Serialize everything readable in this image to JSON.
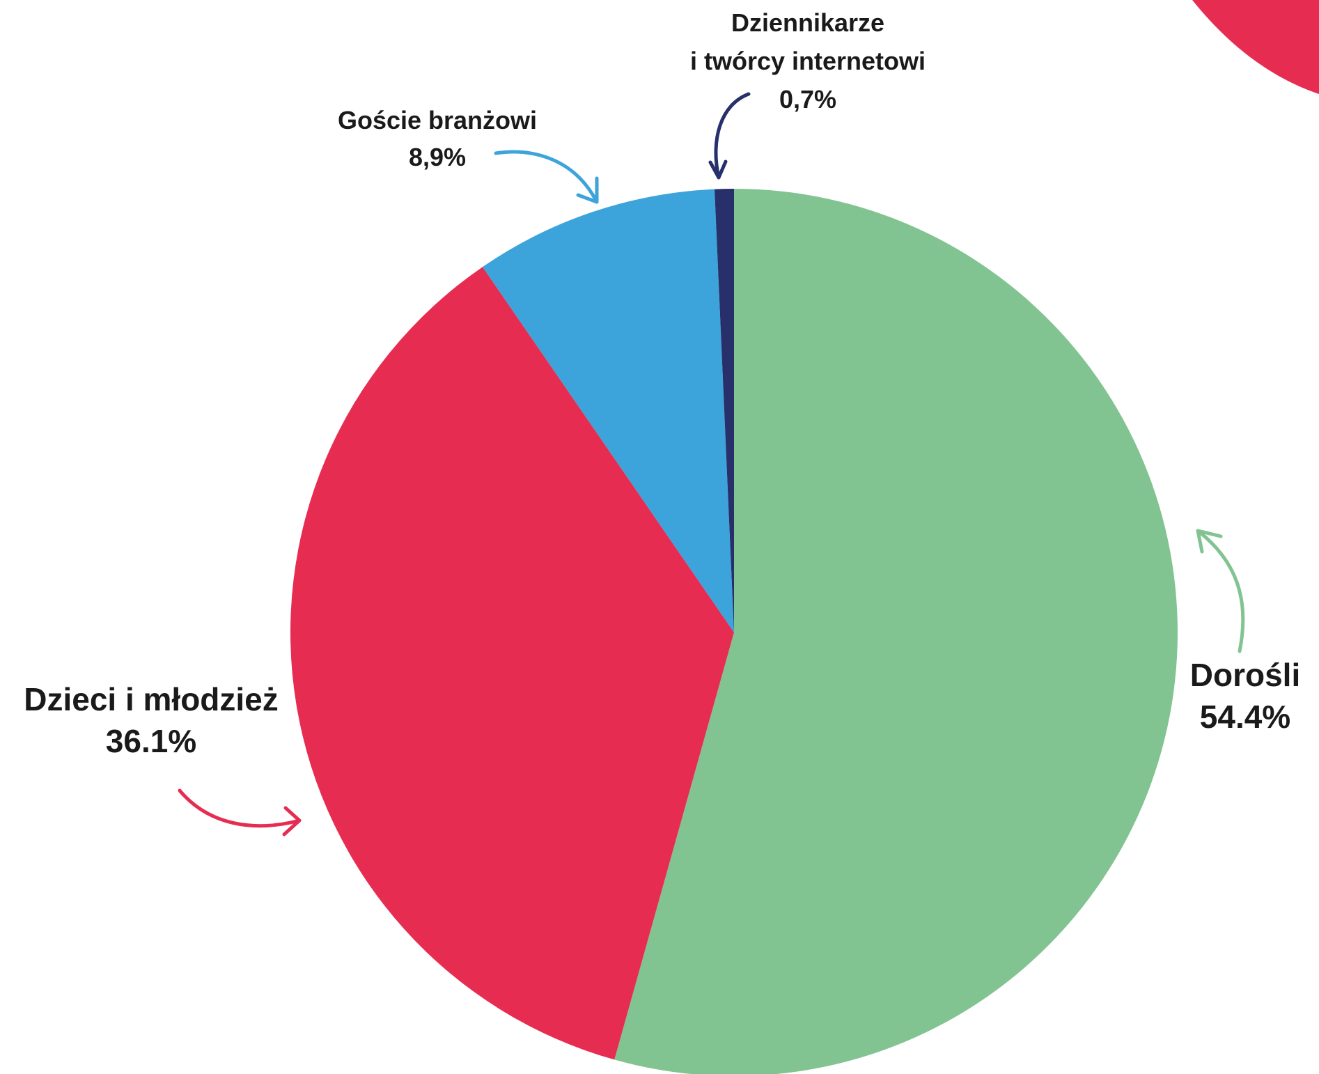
{
  "chart_data": {
    "type": "pie",
    "title": "",
    "slices": [
      {
        "name": "Dorośli",
        "value_label": "54.4%",
        "value": 54.4,
        "color": "#82c491"
      },
      {
        "name": "Dzieci i młodzież",
        "value_label": "36.1%",
        "value": 36.1,
        "color": "#e72c51"
      },
      {
        "name": "Goście branżowi",
        "value_label": "8,9%",
        "value": 8.9,
        "color": "#3ca4db"
      },
      {
        "name_line1": "Dziennikarze",
        "name_line2": "i twórcy internetowi",
        "value_label": "0,7%",
        "value": 0.7,
        "color": "#27306a"
      }
    ],
    "decoration_color": "#e72c51"
  }
}
